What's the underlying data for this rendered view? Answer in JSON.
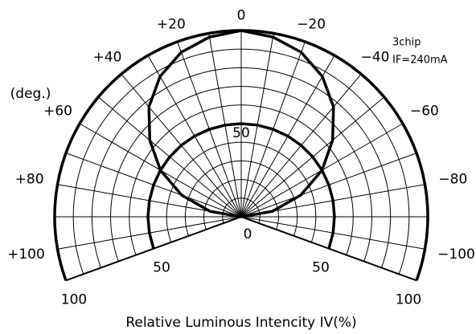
{
  "chart_data": {
    "type": "polar",
    "annotation_lines": [
      "3chip",
      "IF=240mA"
    ],
    "angle_axis_label": "(deg.)",
    "radial_axis_label": "Relative Luminous Intencity IV(%)",
    "thetalim": [
      -110,
      110
    ],
    "rlim": [
      0,
      100
    ],
    "theta_ticks": [
      {
        "value": 100,
        "label": "+100"
      },
      {
        "value": 80,
        "label": "+80"
      },
      {
        "value": 60,
        "label": "+60"
      },
      {
        "value": 40,
        "label": "+40"
      },
      {
        "value": 20,
        "label": "+20"
      },
      0,
      {
        "value": -20,
        "label": "−20"
      },
      {
        "value": -40,
        "label": "−40"
      },
      {
        "value": -60,
        "label": "−60"
      },
      {
        "value": -80,
        "label": "−80"
      },
      {
        "value": -100,
        "label": "−100"
      }
    ],
    "rticks": [
      0,
      50,
      100
    ],
    "theta_grid": [
      -110,
      -100,
      -90,
      -80,
      -70,
      -60,
      -50,
      -40,
      -30,
      -20,
      -10,
      0,
      10,
      20,
      30,
      40,
      50,
      60,
      70,
      80,
      90,
      100,
      110
    ],
    "r_grid": [
      10,
      20,
      30,
      40,
      50,
      60,
      70,
      80,
      90,
      100
    ],
    "grid": true,
    "series": [
      {
        "color": "#000000",
        "angles": [
          -90,
          -80,
          -70,
          -60,
          -50,
          -40,
          -30,
          -20,
          -10,
          0,
          10,
          20,
          30,
          40,
          50,
          60,
          70,
          80,
          90
        ],
        "values": [
          0,
          17,
          34,
          50,
          64,
          77,
          87,
          94,
          98,
          100,
          98,
          94,
          87,
          77,
          64,
          50,
          34,
          17,
          0
        ]
      },
      {
        "color": "#000000",
        "angles": [
          -110,
          -100,
          -90,
          -80,
          -70,
          -60,
          -50,
          -40,
          -30,
          -20,
          -10,
          0,
          10,
          20,
          30,
          40,
          50,
          60,
          70,
          80,
          90,
          100,
          110
        ],
        "values": [
          50,
          50,
          50,
          50,
          50,
          50,
          50,
          50,
          50,
          50,
          50,
          50,
          50,
          50,
          50,
          50,
          50,
          50,
          50,
          50,
          50,
          50,
          50
        ]
      }
    ]
  }
}
